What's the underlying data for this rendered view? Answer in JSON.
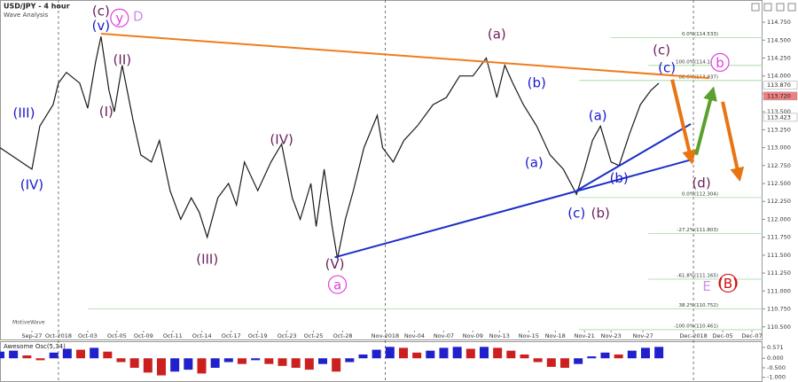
{
  "chart_data": {
    "type": "price-line",
    "title": "USD/JPY - 4 hour",
    "subtitle": "Wave Analysis",
    "watermark": "MotiveWave",
    "color": "#1a1a1a",
    "x": [
      0,
      12,
      15,
      20,
      22,
      25,
      30,
      33,
      36,
      38,
      41,
      43,
      46,
      50,
      53,
      57,
      60,
      64,
      68,
      72,
      75,
      78,
      82,
      86,
      89,
      92,
      97,
      102,
      106,
      110,
      113,
      117,
      119,
      122,
      125,
      127,
      130,
      133,
      137,
      142,
      144,
      148,
      152,
      157,
      163,
      168,
      173,
      178,
      183,
      187,
      190,
      193,
      197,
      202,
      207,
      212,
      217,
      220,
      223,
      226,
      230,
      233,
      237,
      241,
      245,
      248
    ],
    "values": [
      113.0,
      112.7,
      113.3,
      113.6,
      113.9,
      114.05,
      113.9,
      113.55,
      114.2,
      114.55,
      113.8,
      113.5,
      114.15,
      113.4,
      112.9,
      112.8,
      113.1,
      112.4,
      112.0,
      112.3,
      112.1,
      111.75,
      112.3,
      112.5,
      112.2,
      112.8,
      112.4,
      112.8,
      113.05,
      112.3,
      112.0,
      112.5,
      111.9,
      112.7,
      111.9,
      111.45,
      112.0,
      112.4,
      113.0,
      113.45,
      113.0,
      112.8,
      113.1,
      113.3,
      113.6,
      113.7,
      114.0,
      114.0,
      114.25,
      113.7,
      114.15,
      113.9,
      113.6,
      113.3,
      112.9,
      112.7,
      112.35,
      112.7,
      113.1,
      113.3,
      112.8,
      112.75,
      113.2,
      113.6,
      113.8,
      113.9
    ],
    "xlim": [
      0,
      287
    ],
    "ylim": [
      110.46,
      115.06
    ],
    "xticks": [
      {
        "value": 12,
        "label": "Sep-27"
      },
      {
        "value": 22,
        "label": "Oct-2018"
      },
      {
        "value": 33,
        "label": "Oct-03"
      },
      {
        "value": 44,
        "label": "Oct-05"
      },
      {
        "value": 54,
        "label": "Oct-09"
      },
      {
        "value": 65,
        "label": "Oct-11"
      },
      {
        "value": 76,
        "label": "Oct-14"
      },
      {
        "value": 87,
        "label": "Oct-17"
      },
      {
        "value": 97,
        "label": "Oct-19"
      },
      {
        "value": 108,
        "label": "Oct-23"
      },
      {
        "value": 118,
        "label": "Oct-25"
      },
      {
        "value": 129,
        "label": "Oct-28"
      },
      {
        "value": 145,
        "label": "Nov-2018"
      },
      {
        "value": 156,
        "label": "Nov-04"
      },
      {
        "value": 167,
        "label": "Nov-07"
      },
      {
        "value": 178,
        "label": "Nov-09"
      },
      {
        "value": 188,
        "label": "Nov-13"
      },
      {
        "value": 199,
        "label": "Nov-15"
      },
      {
        "value": 209,
        "label": "Nov-18"
      },
      {
        "value": 220,
        "label": "Nov-21"
      },
      {
        "value": 230,
        "label": "Nov-23"
      },
      {
        "value": 242,
        "label": "Nov-27"
      },
      {
        "value": 261,
        "label": "Dec-2018"
      },
      {
        "value": 272,
        "label": "Dec-05"
      },
      {
        "value": 283,
        "label": "Dec-07"
      }
    ],
    "period_lines": [
      22,
      145,
      261
    ],
    "yticks": [
      {
        "value": 110.5,
        "label": "110.500"
      },
      {
        "value": 110.75,
        "label": "110.750"
      },
      {
        "value": 111,
        "label": "111.000"
      },
      {
        "value": 111.25,
        "label": "111.250"
      },
      {
        "value": 111.5,
        "label": "111.500"
      },
      {
        "value": 111.75,
        "label": "111.750"
      },
      {
        "value": 112,
        "label": "112.000"
      },
      {
        "value": 112.25,
        "label": "112.250"
      },
      {
        "value": 112.5,
        "label": "112.500"
      },
      {
        "value": 112.75,
        "label": "112.750"
      },
      {
        "value": 113,
        "label": "113.000"
      },
      {
        "value": 113.25,
        "label": "113.250"
      },
      {
        "value": 113.5,
        "label": "113.500"
      },
      {
        "value": 113.75,
        "label": "113.750"
      },
      {
        "value": 114,
        "label": "114.000"
      },
      {
        "value": 114.25,
        "label": "114.250"
      },
      {
        "value": 114.5,
        "label": "114.500"
      },
      {
        "value": 114.75,
        "label": "114.750"
      }
    ],
    "price_flags": [
      {
        "value": 113.87,
        "label": "113.870",
        "color": "#ffffff"
      },
      {
        "value": 113.72,
        "label": "113.720",
        "color": "#f08080"
      },
      {
        "value": 113.423,
        "label": "113.423",
        "color": "#ffffff"
      }
    ],
    "fib_levels": [
      {
        "value": 114.533,
        "label": "0.0%(114.533)",
        "start": 230
      },
      {
        "value": 114.147,
        "label": "100.0%(114.147)",
        "start": 244
      },
      {
        "value": 113.937,
        "label": "88.6%(113.937)",
        "start": 218
      },
      {
        "value": 112.304,
        "label": "0.0%(112.304)",
        "start": 218
      },
      {
        "value": 111.803,
        "label": "-27.2%(111.803)",
        "start": 244
      },
      {
        "value": 111.165,
        "label": "-61.8%(111.165)",
        "start": 244
      },
      {
        "value": 110.752,
        "label": "38.2%(110.752)",
        "start": 33
      },
      {
        "value": 110.461,
        "label": "-100.0%(110.461)",
        "start": 218
      }
    ],
    "fib_color": "#9ed89e",
    "trendlines": [
      {
        "x": [
          38,
          267
        ],
        "y": [
          114.59,
          113.97
        ],
        "color": "#f07c1c"
      },
      {
        "x": [
          126,
          260
        ],
        "y": [
          111.47,
          112.83
        ],
        "color": "#1a2fc8"
      },
      {
        "x": [
          217,
          260
        ],
        "y": [
          112.4,
          113.33
        ],
        "color": "#1a2fc8"
      }
    ],
    "projections": [
      {
        "x": [
          253,
          260
        ],
        "y": [
          113.95,
          112.86
        ],
        "color": "#e87512"
      },
      {
        "x": [
          262,
          268
        ],
        "y": [
          112.9,
          113.76
        ],
        "color": "#5aa02c"
      },
      {
        "x": [
          272,
          278
        ],
        "y": [
          113.64,
          112.62
        ],
        "color": "#e87512"
      }
    ],
    "wave_labels": [
      {
        "text": "(c)",
        "x": 38,
        "y": 114.91,
        "color": "#6b1f5c"
      },
      {
        "text": "y",
        "x": 45,
        "y": 114.81,
        "color": "#e040e0",
        "circle": true
      },
      {
        "text": "D",
        "x": 52,
        "y": 114.84,
        "color": "#c890e8"
      },
      {
        "text": "(v)",
        "x": 38,
        "y": 114.71,
        "color": "#1a1acc"
      },
      {
        "text": "(III)",
        "x": 9,
        "y": 113.49,
        "color": "#1a1acc"
      },
      {
        "text": "(IV)",
        "x": 12,
        "y": 112.49,
        "color": "#1a1acc"
      },
      {
        "text": "(II)",
        "x": 46,
        "y": 114.23,
        "color": "#6b1f5c"
      },
      {
        "text": "(I)",
        "x": 40,
        "y": 113.51,
        "color": "#6b1f5c"
      },
      {
        "text": "(III)",
        "x": 78,
        "y": 111.45,
        "color": "#6b1f5c"
      },
      {
        "text": "(IV)",
        "x": 106,
        "y": 113.12,
        "color": "#6b1f5c"
      },
      {
        "text": "(V)",
        "x": 126,
        "y": 111.38,
        "color": "#6b1f5c"
      },
      {
        "text": "a",
        "x": 127,
        "y": 111.09,
        "color": "#e040e0",
        "circle": true
      },
      {
        "text": "(a)",
        "x": 187,
        "y": 114.59,
        "color": "#6b1f5c"
      },
      {
        "text": "(c)",
        "x": 249,
        "y": 114.37,
        "color": "#6b1f5c"
      },
      {
        "text": "(c)",
        "x": 251,
        "y": 114.12,
        "color": "#1a1acc"
      },
      {
        "text": "b",
        "x": 271,
        "y": 114.19,
        "color": "#e040e0",
        "circle": true
      },
      {
        "text": "(b)",
        "x": 202,
        "y": 113.91,
        "color": "#1a1acc"
      },
      {
        "text": "(a)",
        "x": 201,
        "y": 112.8,
        "color": "#1a1acc"
      },
      {
        "text": "(a)",
        "x": 225,
        "y": 113.45,
        "color": "#1a1acc"
      },
      {
        "text": "(b)",
        "x": 233,
        "y": 112.58,
        "color": "#1a1acc"
      },
      {
        "text": "(c)",
        "x": 217,
        "y": 112.09,
        "color": "#1a1acc"
      },
      {
        "text": "(b)",
        "x": 226,
        "y": 112.09,
        "color": "#6b1f5c"
      },
      {
        "text": "(d)",
        "x": 264,
        "y": 112.51,
        "color": "#6b1f5c"
      },
      {
        "text": "E",
        "x": 266,
        "y": 111.07,
        "color": "#c890e8"
      },
      {
        "text": "(B)",
        "x": 274,
        "y": 111.11,
        "color": "#cc1111",
        "circle": true
      }
    ],
    "oscillator": {
      "title": "Awesome Osc(5,34)",
      "up_color": "#2020cc",
      "down_color": "#cc2020",
      "values": [
        0.35,
        0.4,
        0.15,
        -0.1,
        0.3,
        0.5,
        0.45,
        0.55,
        0.35,
        -0.2,
        -0.5,
        -0.75,
        -0.9,
        -0.7,
        -0.6,
        -0.8,
        -0.5,
        -0.2,
        -0.3,
        -0.1,
        -0.3,
        -0.4,
        -0.5,
        -0.6,
        -0.3,
        -0.7,
        -0.2,
        0.2,
        0.45,
        0.6,
        0.55,
        0.3,
        0.4,
        0.55,
        0.6,
        0.5,
        0.6,
        0.55,
        0.4,
        0.2,
        -0.2,
        -0.45,
        -0.5,
        -0.3,
        0.1,
        0.3,
        0.2,
        0.4,
        0.55,
        0.6
      ],
      "xlim": [
        0,
        248
      ],
      "ylim": [
        -1.2,
        0.85
      ],
      "yticks": [
        {
          "value": 0.571,
          "label": "0.571"
        },
        {
          "value": 0,
          "label": "0.000"
        },
        {
          "value": -0.5,
          "label": "-0.500"
        },
        {
          "value": -1,
          "label": "-1.000"
        }
      ]
    }
  }
}
